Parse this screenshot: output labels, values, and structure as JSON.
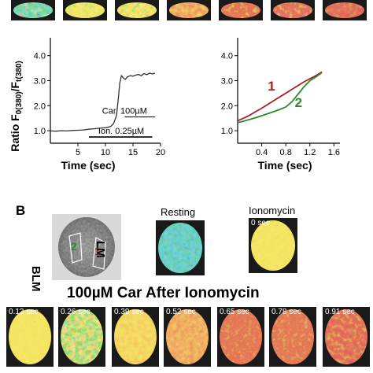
{
  "colors": {
    "line_main": "#333333",
    "series_1": "#aa1f24",
    "series_2": "#2b8a2e",
    "heat_low": "#1a55c8",
    "heat_mid": "#e6d020",
    "heat_high": "#c22a17"
  },
  "panel_b": {
    "letter": "B",
    "resting_label": "Resting",
    "ionomycin_label": "Ionomycin",
    "ionomycin_time": "0 sec",
    "cell_labels": {
      "lm": "LM",
      "blm": "BLM",
      "region_1": "1",
      "region_2": "2"
    },
    "series_title": "100µM Car After Ionomycin",
    "series_times": [
      "0.13 sec",
      "0.26 sec",
      "0.39 sec",
      "0.52 sec",
      "0.65 sec",
      "0.78 sec",
      "0.91 sec"
    ]
  },
  "chart_data": [
    {
      "type": "line",
      "ylabel": "Ratio F0(380)/Ft(380)",
      "ylabel_main": "Ratio F",
      "ylabel_sub1": "0(380)",
      "ylabel_slash": "/F",
      "ylabel_sub2": "t(380)",
      "xlabel": "Time (sec)",
      "xlim": [
        0,
        20
      ],
      "ylim": [
        0.5,
        4.4
      ],
      "xticks": [
        5,
        10,
        15,
        20
      ],
      "yticks": [
        1.0,
        2.0,
        3.0,
        4.0
      ],
      "ytick_labels": [
        "1.0",
        "2.0",
        "3.0",
        "4.0"
      ],
      "series": [
        {
          "x": [
            0,
            1,
            2,
            3,
            4,
            5,
            6,
            7,
            8,
            9,
            10,
            10.5,
            11,
            11.5,
            12,
            12.3,
            12.6,
            12.9,
            13.2,
            13.6,
            14,
            14.5,
            15,
            15.5,
            16,
            16.5,
            17,
            17.5,
            18,
            18.5,
            19
          ],
          "y": [
            0.99,
            0.98,
            1.0,
            0.99,
            1.01,
            1.02,
            1.03,
            1.06,
            1.08,
            1.1,
            1.12,
            1.14,
            1.18,
            1.3,
            1.6,
            2.2,
            2.9,
            3.2,
            3.12,
            3.05,
            3.15,
            3.2,
            3.18,
            3.22,
            3.25,
            3.2,
            3.28,
            3.24,
            3.3,
            3.27,
            3.3
          ]
        }
      ],
      "annotations": [
        {
          "label": "Car. 100µM",
          "x_start": 13.5,
          "x_end": 19
        },
        {
          "label": "Ion. 0.25µM",
          "x_start": 7,
          "x_end": 18.5
        }
      ]
    },
    {
      "type": "line",
      "xlabel": "Time (sec)",
      "xlim": [
        0,
        1.7
      ],
      "ylim": [
        0.5,
        4.4
      ],
      "xticks": [
        0.4,
        0.8,
        1.2,
        1.6
      ],
      "xtick_labels": [
        "0.4",
        "0.8",
        "1.2",
        "1.6"
      ],
      "yticks": [
        1.0,
        2.0,
        3.0,
        4.0
      ],
      "ytick_labels": [
        "1.0",
        "2.0",
        "3.0",
        "4.0"
      ],
      "series": [
        {
          "label": "1",
          "x": [
            0,
            0.1,
            0.2,
            0.3,
            0.4,
            0.5,
            0.6,
            0.7,
            0.8,
            0.9,
            1.0,
            1.1,
            1.2,
            1.3,
            1.4
          ],
          "y": [
            1.4,
            1.5,
            1.62,
            1.76,
            1.9,
            2.05,
            2.2,
            2.35,
            2.5,
            2.65,
            2.8,
            2.95,
            3.08,
            3.2,
            3.35
          ]
        },
        {
          "label": "2",
          "x": [
            0,
            0.1,
            0.2,
            0.3,
            0.4,
            0.5,
            0.6,
            0.7,
            0.8,
            0.9,
            1.0,
            1.1,
            1.2,
            1.3,
            1.4
          ],
          "y": [
            1.32,
            1.38,
            1.45,
            1.52,
            1.6,
            1.68,
            1.76,
            1.85,
            1.95,
            2.15,
            2.45,
            2.75,
            3.0,
            3.15,
            3.32
          ]
        }
      ]
    }
  ]
}
